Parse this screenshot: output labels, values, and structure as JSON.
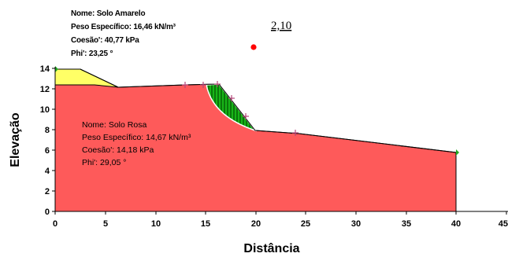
{
  "axes": {
    "x_title": "Distância",
    "y_title": "Elevação",
    "x_ticks": [
      "0",
      "5",
      "10",
      "15",
      "20",
      "25",
      "30",
      "35",
      "40",
      "45"
    ],
    "y_ticks": [
      "0",
      "2",
      "4",
      "6",
      "8",
      "10",
      "12",
      "14"
    ]
  },
  "materials": {
    "upper": {
      "name": "Nome: Solo Amarelo",
      "unit_weight": "Peso Específico: 16,46 kN/m³",
      "cohesion": "Coesão': 40,77 kPa",
      "phi": "Phi': 23,25 °",
      "color": "#ffff66"
    },
    "lower": {
      "name": "Nome: Solo Rosa",
      "unit_weight": "Peso Específico: 14,67 kN/m³",
      "cohesion": "Coesão': 14,18 kPa",
      "phi": "Phi': 29,05 °",
      "color": "#fe5a5a"
    }
  },
  "factor_of_safety": "2,10",
  "colors": {
    "slip_mass": "#15b015",
    "slip_hatch": "#005500",
    "center_point": "#ff0000",
    "marker": "#b5477a",
    "edge_marker": "#22aa22"
  }
}
